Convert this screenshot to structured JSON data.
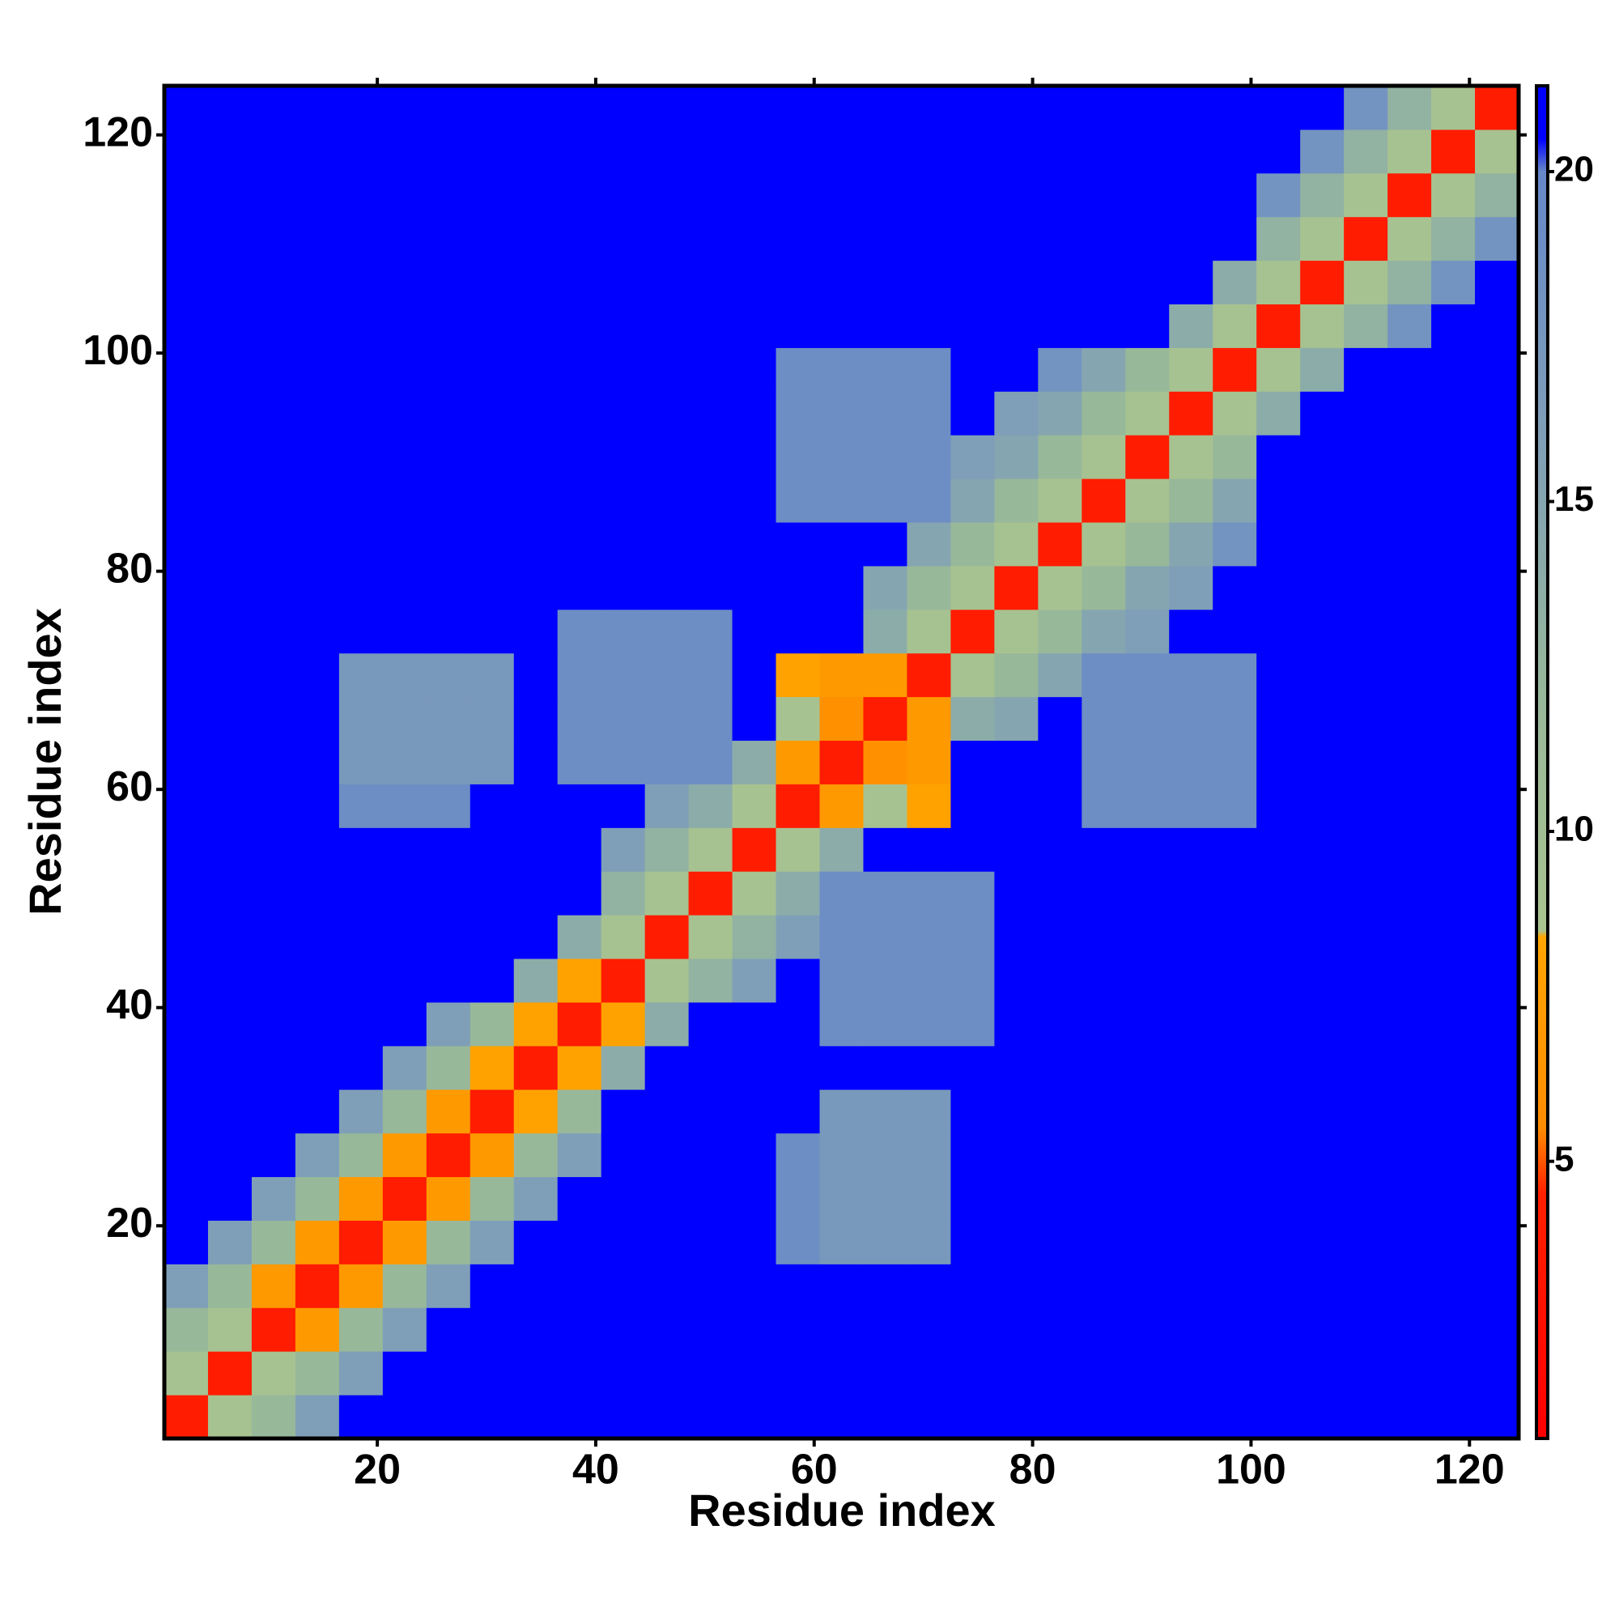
{
  "chart_data": {
    "type": "heatmap",
    "xlabel": "Residue index",
    "ylabel": "Residue index",
    "x": [
      2.5,
      6.5,
      10.5,
      14.5,
      18.5,
      22.5,
      26.5,
      30.5,
      34.5,
      38.5,
      42.5,
      46.5,
      50.5,
      54.5,
      58.5,
      62.5,
      66.5,
      70.5,
      74.5,
      78.5,
      82.5,
      86.5,
      90.5,
      94.5,
      98.5,
      102.5,
      106.5,
      110.5,
      114.5,
      118.5,
      122.5
    ],
    "y": [
      2.5,
      6.5,
      10.5,
      14.5,
      18.5,
      22.5,
      26.5,
      30.5,
      34.5,
      38.5,
      42.5,
      46.5,
      50.5,
      54.5,
      58.5,
      62.5,
      66.5,
      70.5,
      74.5,
      78.5,
      82.5,
      86.5,
      90.5,
      94.5,
      98.5,
      102.5,
      106.5,
      110.5,
      114.5,
      118.5,
      122.5
    ],
    "xlim": [
      0.5,
      124.5
    ],
    "ylim": [
      0.5,
      124.5
    ],
    "xticks": [
      20,
      40,
      60,
      80,
      100,
      120
    ],
    "yticks": [
      20,
      40,
      60,
      80,
      100,
      120
    ],
    "zlim": [
      0.8,
      21.3
    ],
    "zticks": [
      5,
      10,
      15,
      20
    ],
    "colorscale": [
      {
        "value": 0.8,
        "color": "#ff0000"
      },
      {
        "value": 4.5,
        "color": "#ff2000"
      },
      {
        "value": 5.5,
        "color": "#ff8c00"
      },
      {
        "value": 8.4,
        "color": "#ffa500"
      },
      {
        "value": 8.5,
        "color": "#a9c48f"
      },
      {
        "value": 12,
        "color": "#98b89a"
      },
      {
        "value": 16,
        "color": "#7f9fb8"
      },
      {
        "value": 20,
        "color": "#6688c8"
      },
      {
        "value": 20.5,
        "color": "#0000ff"
      },
      {
        "value": 21.3,
        "color": "#0000ff"
      }
    ],
    "z": [
      [
        4,
        9,
        12,
        16,
        21,
        21,
        21,
        21,
        21,
        21,
        21,
        21,
        21,
        21,
        21,
        21,
        21,
        21,
        21,
        21,
        21,
        21,
        21,
        21,
        21,
        21,
        21,
        21,
        21,
        21,
        21
      ],
      [
        9,
        4,
        9,
        12,
        16,
        21,
        21,
        21,
        21,
        21,
        21,
        21,
        21,
        21,
        21,
        21,
        21,
        21,
        21,
        21,
        21,
        21,
        21,
        21,
        21,
        21,
        21,
        21,
        21,
        21,
        21
      ],
      [
        12,
        9,
        4,
        7,
        12,
        16,
        21,
        21,
        21,
        21,
        21,
        21,
        21,
        21,
        21,
        21,
        21,
        21,
        21,
        21,
        21,
        21,
        21,
        21,
        21,
        21,
        21,
        21,
        21,
        21,
        21
      ],
      [
        16,
        12,
        7,
        4,
        7,
        12,
        16,
        21,
        21,
        21,
        21,
        21,
        21,
        21,
        21,
        21,
        21,
        21,
        21,
        21,
        21,
        21,
        21,
        21,
        21,
        21,
        21,
        21,
        21,
        21,
        21
      ],
      [
        21,
        16,
        12,
        7,
        4,
        7,
        12,
        16,
        21,
        21,
        21,
        21,
        21,
        21,
        19,
        17,
        17,
        17,
        21,
        21,
        21,
        21,
        21,
        21,
        21,
        21,
        21,
        21,
        21,
        21,
        21
      ],
      [
        21,
        21,
        16,
        12,
        7,
        4,
        7,
        12,
        16,
        21,
        21,
        21,
        21,
        21,
        19,
        17,
        17,
        17,
        21,
        21,
        21,
        21,
        21,
        21,
        21,
        21,
        21,
        21,
        21,
        21,
        21
      ],
      [
        21,
        21,
        21,
        16,
        12,
        7,
        4,
        7,
        12,
        16,
        21,
        21,
        21,
        21,
        19,
        17,
        17,
        17,
        21,
        21,
        21,
        21,
        21,
        21,
        21,
        21,
        21,
        21,
        21,
        21,
        21
      ],
      [
        21,
        21,
        21,
        21,
        16,
        12,
        7,
        4,
        8,
        12,
        21,
        21,
        21,
        21,
        21,
        17,
        17,
        17,
        21,
        21,
        21,
        21,
        21,
        21,
        21,
        21,
        21,
        21,
        21,
        21,
        21
      ],
      [
        21,
        21,
        21,
        21,
        21,
        16,
        12,
        8,
        4,
        8,
        14,
        21,
        21,
        21,
        21,
        21,
        21,
        21,
        21,
        21,
        21,
        21,
        21,
        21,
        21,
        21,
        21,
        21,
        21,
        21,
        21
      ],
      [
        21,
        21,
        21,
        21,
        21,
        21,
        16,
        12,
        8,
        4,
        8,
        14,
        21,
        21,
        21,
        19,
        19,
        19,
        19,
        21,
        21,
        21,
        21,
        21,
        21,
        21,
        21,
        21,
        21,
        21,
        21
      ],
      [
        21,
        21,
        21,
        21,
        21,
        21,
        21,
        21,
        14,
        8,
        4,
        9,
        13,
        16,
        21,
        19,
        19,
        19,
        19,
        21,
        21,
        21,
        21,
        21,
        21,
        21,
        21,
        21,
        21,
        21,
        21
      ],
      [
        21,
        21,
        21,
        21,
        21,
        21,
        21,
        21,
        21,
        14,
        9,
        4,
        9,
        13,
        16,
        19,
        19,
        19,
        19,
        21,
        21,
        21,
        21,
        21,
        21,
        21,
        21,
        21,
        21,
        21,
        21
      ],
      [
        21,
        21,
        21,
        21,
        21,
        21,
        21,
        21,
        21,
        21,
        13,
        9,
        4,
        9,
        14,
        19,
        19,
        19,
        19,
        21,
        21,
        21,
        21,
        21,
        21,
        21,
        21,
        21,
        21,
        21,
        21
      ],
      [
        21,
        21,
        21,
        21,
        21,
        21,
        21,
        21,
        21,
        21,
        16,
        13,
        9,
        4,
        9,
        14,
        21,
        21,
        21,
        21,
        21,
        21,
        21,
        21,
        21,
        21,
        21,
        21,
        21,
        21,
        21
      ],
      [
        21,
        21,
        21,
        21,
        19,
        19,
        19,
        21,
        21,
        21,
        21,
        16,
        14,
        9,
        4,
        7,
        9,
        8,
        21,
        21,
        21,
        19,
        19,
        19,
        19,
        21,
        21,
        21,
        21,
        21,
        21
      ],
      [
        21,
        21,
        21,
        21,
        17,
        17,
        17,
        17,
        21,
        19,
        19,
        19,
        19,
        14,
        7,
        4,
        6,
        7,
        21,
        21,
        21,
        19,
        19,
        19,
        19,
        21,
        21,
        21,
        21,
        21,
        21
      ],
      [
        21,
        21,
        21,
        21,
        17,
        17,
        17,
        17,
        21,
        19,
        19,
        19,
        19,
        21,
        9,
        6,
        4,
        7,
        14,
        15,
        21,
        19,
        19,
        19,
        19,
        21,
        21,
        21,
        21,
        21,
        21
      ],
      [
        21,
        21,
        21,
        21,
        17,
        17,
        17,
        17,
        21,
        19,
        19,
        19,
        19,
        21,
        8,
        7,
        7,
        4,
        9,
        12,
        15,
        19,
        19,
        19,
        19,
        21,
        21,
        21,
        21,
        21,
        21
      ],
      [
        21,
        21,
        21,
        21,
        21,
        21,
        21,
        21,
        21,
        19,
        19,
        19,
        19,
        21,
        21,
        21,
        14,
        9,
        4,
        9,
        12,
        15,
        16,
        21,
        21,
        21,
        21,
        21,
        21,
        21,
        21
      ],
      [
        21,
        21,
        21,
        21,
        21,
        21,
        21,
        21,
        21,
        21,
        21,
        21,
        21,
        21,
        21,
        21,
        15,
        12,
        9,
        4,
        9,
        12,
        15,
        16,
        21,
        21,
        21,
        21,
        21,
        21,
        21
      ],
      [
        21,
        21,
        21,
        21,
        21,
        21,
        21,
        21,
        21,
        21,
        21,
        21,
        21,
        21,
        21,
        21,
        21,
        15,
        12,
        9,
        4,
        9,
        12,
        15,
        18,
        21,
        21,
        21,
        21,
        21,
        21
      ],
      [
        21,
        21,
        21,
        21,
        21,
        21,
        21,
        21,
        21,
        21,
        21,
        21,
        21,
        21,
        19,
        19,
        19,
        19,
        15,
        12,
        9,
        4,
        9,
        12,
        15,
        21,
        21,
        21,
        21,
        21,
        21
      ],
      [
        21,
        21,
        21,
        21,
        21,
        21,
        21,
        21,
        21,
        21,
        21,
        21,
        21,
        21,
        19,
        19,
        19,
        19,
        16,
        15,
        12,
        9,
        4,
        9,
        12,
        21,
        21,
        21,
        21,
        21,
        21
      ],
      [
        21,
        21,
        21,
        21,
        21,
        21,
        21,
        21,
        21,
        21,
        21,
        21,
        21,
        21,
        19,
        19,
        19,
        19,
        21,
        16,
        15,
        12,
        9,
        4,
        9,
        14,
        21,
        21,
        21,
        21,
        21
      ],
      [
        21,
        21,
        21,
        21,
        21,
        21,
        21,
        21,
        21,
        21,
        21,
        21,
        21,
        21,
        19,
        19,
        19,
        19,
        21,
        21,
        18,
        15,
        12,
        9,
        4,
        9,
        14,
        21,
        21,
        21,
        21
      ],
      [
        21,
        21,
        21,
        21,
        21,
        21,
        21,
        21,
        21,
        21,
        21,
        21,
        21,
        21,
        21,
        21,
        21,
        21,
        21,
        21,
        21,
        21,
        21,
        14,
        9,
        4,
        9,
        13,
        18,
        21,
        21
      ],
      [
        21,
        21,
        21,
        21,
        21,
        21,
        21,
        21,
        21,
        21,
        21,
        21,
        21,
        21,
        21,
        21,
        21,
        21,
        21,
        21,
        21,
        21,
        21,
        21,
        14,
        9,
        4,
        9,
        13,
        18,
        21
      ],
      [
        21,
        21,
        21,
        21,
        21,
        21,
        21,
        21,
        21,
        21,
        21,
        21,
        21,
        21,
        21,
        21,
        21,
        21,
        21,
        21,
        21,
        21,
        21,
        21,
        21,
        13,
        9,
        4,
        9,
        13,
        18
      ],
      [
        21,
        21,
        21,
        21,
        21,
        21,
        21,
        21,
        21,
        21,
        21,
        21,
        21,
        21,
        21,
        21,
        21,
        21,
        21,
        21,
        21,
        21,
        21,
        21,
        21,
        18,
        13,
        9,
        4,
        9,
        13
      ],
      [
        21,
        21,
        21,
        21,
        21,
        21,
        21,
        21,
        21,
        21,
        21,
        21,
        21,
        21,
        21,
        21,
        21,
        21,
        21,
        21,
        21,
        21,
        21,
        21,
        21,
        21,
        18,
        13,
        9,
        4,
        9
      ],
      [
        21,
        21,
        21,
        21,
        21,
        21,
        21,
        21,
        21,
        21,
        21,
        21,
        21,
        21,
        21,
        21,
        21,
        21,
        21,
        21,
        21,
        21,
        21,
        21,
        21,
        21,
        21,
        18,
        13,
        9,
        4
      ]
    ]
  }
}
